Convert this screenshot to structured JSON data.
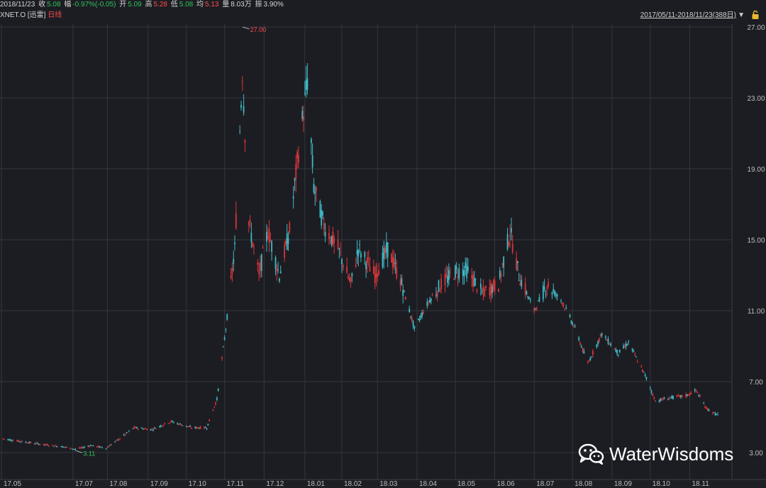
{
  "quote": {
    "date": "2018/11/23",
    "close_label": "收",
    "close": "5.08",
    "change_label": "幅",
    "change": "-0.97%(-0.05)",
    "open_label": "开",
    "open": "5.09",
    "high_label": "高",
    "high": "5.28",
    "low_label": "低",
    "low": "5.08",
    "avg_label": "均",
    "avg": "5.13",
    "volume_label": "量",
    "volume": "8.03万",
    "amplitude_label": "振",
    "amplitude": "3.90%"
  },
  "symbol": {
    "code": "XNET.O",
    "name": "[迅雷]",
    "period": "日线"
  },
  "range_selector": {
    "label": "2017/05/11-2018/11/23(388日)"
  },
  "watermark": {
    "text": "WaterWisdoms",
    "icon": "wechat-icon"
  },
  "colors": {
    "background": "#1c1d22",
    "grid": "#33363e",
    "up": "#d8353a",
    "down": "#3fb9c6",
    "up_text": "#ff4b4b",
    "down_text": "#2fc25b"
  },
  "chart_data": {
    "type": "candlestick",
    "x_ticks": [
      "17.05",
      "17.07",
      "17.08",
      "17.09",
      "17.10",
      "17.11",
      "17.12",
      "18.01",
      "18.02",
      "18.03",
      "18.04",
      "18.05",
      "18.06",
      "18.07",
      "18.08",
      "18.09",
      "18.10",
      "18.11"
    ],
    "y_ticks": [
      "27.00",
      "23.00",
      "19.00",
      "15.00",
      "11.00",
      "7.00",
      "3.00"
    ],
    "ylim": [
      3.0,
      27.0
    ],
    "annotations": [
      {
        "text": "27.00",
        "date": "2017-11-15",
        "value": 27.0,
        "kind": "max",
        "color": "up"
      },
      {
        "text": "3.11",
        "date": "2017-07-07",
        "value": 3.11,
        "kind": "min",
        "color": "down"
      }
    ],
    "series_points": [
      {
        "date": "2017-05-11",
        "close": 3.78
      },
      {
        "date": "2017-05-26",
        "close": 3.62
      },
      {
        "date": "2017-06-12",
        "close": 3.45
      },
      {
        "date": "2017-06-28",
        "close": 3.32
      },
      {
        "date": "2017-07-07",
        "close": 3.18
      },
      {
        "date": "2017-07-19",
        "close": 3.4
      },
      {
        "date": "2017-07-31",
        "close": 3.25
      },
      {
        "date": "2017-08-10",
        "close": 3.75
      },
      {
        "date": "2017-08-22",
        "close": 4.4
      },
      {
        "date": "2017-09-05",
        "close": 4.3
      },
      {
        "date": "2017-09-20",
        "close": 4.75
      },
      {
        "date": "2017-10-06",
        "close": 4.4
      },
      {
        "date": "2017-10-18",
        "close": 4.4
      },
      {
        "date": "2017-10-26",
        "close": 6.0
      },
      {
        "date": "2017-11-02",
        "close": 10.0
      },
      {
        "date": "2017-11-09",
        "close": 14.5
      },
      {
        "date": "2017-11-15",
        "close": 24.5
      },
      {
        "date": "2017-11-20",
        "close": 16.0
      },
      {
        "date": "2017-11-28",
        "close": 13.0
      },
      {
        "date": "2017-12-05",
        "close": 15.5
      },
      {
        "date": "2017-12-14",
        "close": 13.0
      },
      {
        "date": "2017-12-22",
        "close": 15.5
      },
      {
        "date": "2017-12-29",
        "close": 20.0
      },
      {
        "date": "2018-01-05",
        "close": 24.0
      },
      {
        "date": "2018-01-10",
        "close": 18.0
      },
      {
        "date": "2018-01-18",
        "close": 15.8
      },
      {
        "date": "2018-01-29",
        "close": 14.5
      },
      {
        "date": "2018-02-08",
        "close": 12.5
      },
      {
        "date": "2018-02-14",
        "close": 14.5
      },
      {
        "date": "2018-02-27",
        "close": 13.0
      },
      {
        "date": "2018-03-09",
        "close": 14.5
      },
      {
        "date": "2018-03-20",
        "close": 12.5
      },
      {
        "date": "2018-03-30",
        "close": 10.0
      },
      {
        "date": "2018-04-10",
        "close": 11.5
      },
      {
        "date": "2018-04-20",
        "close": 12.5
      },
      {
        "date": "2018-05-01",
        "close": 13.2
      },
      {
        "date": "2018-05-10",
        "close": 13.3
      },
      {
        "date": "2018-05-22",
        "close": 12.0
      },
      {
        "date": "2018-06-04",
        "close": 12.5
      },
      {
        "date": "2018-06-13",
        "close": 15.5
      },
      {
        "date": "2018-06-20",
        "close": 13.0
      },
      {
        "date": "2018-07-02",
        "close": 11.0
      },
      {
        "date": "2018-07-12",
        "close": 12.5
      },
      {
        "date": "2018-07-24",
        "close": 11.5
      },
      {
        "date": "2018-08-03",
        "close": 10.0
      },
      {
        "date": "2018-08-13",
        "close": 8.0
      },
      {
        "date": "2018-08-24",
        "close": 9.7
      },
      {
        "date": "2018-09-06",
        "close": 8.6
      },
      {
        "date": "2018-09-14",
        "close": 9.2
      },
      {
        "date": "2018-09-28",
        "close": 7.2
      },
      {
        "date": "2018-10-05",
        "close": 5.9
      },
      {
        "date": "2018-10-17",
        "close": 6.1
      },
      {
        "date": "2018-10-29",
        "close": 6.2
      },
      {
        "date": "2018-11-06",
        "close": 6.5
      },
      {
        "date": "2018-11-14",
        "close": 5.5
      },
      {
        "date": "2018-11-23",
        "close": 5.08
      }
    ]
  }
}
